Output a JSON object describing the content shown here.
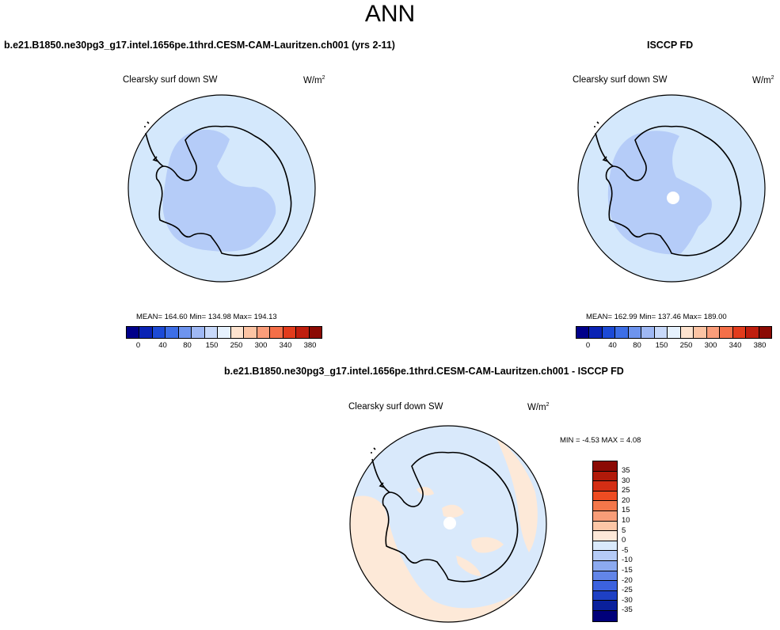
{
  "main_title": "ANN",
  "panels": {
    "model": {
      "title": "b.e21.B1850.ne30pg3_g17.intel.1656pe.1thrd.CESM-CAM-Lauritzen.ch001 (yrs 2-11)",
      "var_label": "Clearsky surf down SW",
      "units": "W/m",
      "units_sup": "2",
      "stats": "MEAN= 164.60  Min= 134.98  Max= 194.13"
    },
    "obs": {
      "title": "ISCCP FD",
      "var_label": "Clearsky surf down SW",
      "units": "W/m",
      "units_sup": "2",
      "stats": "MEAN= 162.99  Min= 137.46  Max= 189.00"
    },
    "diff": {
      "title": "b.e21.B1850.ne30pg3_g17.intel.1656pe.1thrd.CESM-CAM-Lauritzen.ch001 - ISCCP FD",
      "var_label": "Clearsky surf down SW",
      "units": "W/m",
      "units_sup": "2",
      "stats": "MIN =  -4.53 MAX =  4.08"
    }
  },
  "colorbar_main": {
    "colors": [
      "#00008a",
      "#0a23b4",
      "#1c4ad6",
      "#3d6ee6",
      "#6e94ee",
      "#9fb8f4",
      "#c8d9fa",
      "#e6f1fd",
      "#fde3cf",
      "#fcc4a4",
      "#fa9d7a",
      "#f46f48",
      "#e23c1c",
      "#bf1e0e",
      "#8b0a04"
    ],
    "labels": [
      "0",
      "40",
      "80",
      "150",
      "250",
      "300",
      "340",
      "380"
    ]
  },
  "colorbar_diff": {
    "colors": [
      "#8b0a04",
      "#b11a0a",
      "#d42e14",
      "#ee4c22",
      "#f4774a",
      "#f89d78",
      "#fcc6a6",
      "#fde8d8",
      "#d9e9fb",
      "#b5cbf6",
      "#8caaf0",
      "#6285e8",
      "#3c62de",
      "#1e40c4",
      "#0a209c",
      "#00007a"
    ],
    "labels": [
      "35",
      "30",
      "25",
      "20",
      "15",
      "10",
      "5",
      "0",
      "-5",
      "-10",
      "-15",
      "-20",
      "-25",
      "-30",
      "-35"
    ]
  },
  "colors": {
    "ocean_light_blue": "#d4e8fc",
    "interior_blue": "#b5ccf8",
    "diff_peach": "#fde9d8",
    "diff_blue": "#d9e9fb",
    "coastline": "#000000"
  }
}
